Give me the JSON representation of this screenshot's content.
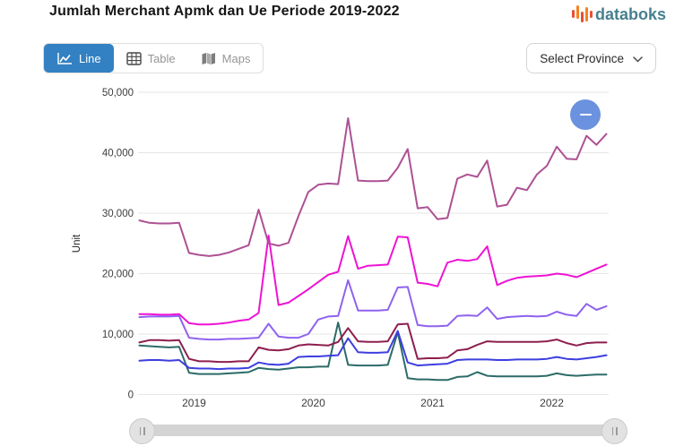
{
  "header": {
    "title": "Jumlah Merchant Apmk dan Ue Periode 2019-2022",
    "logo_text": "databoks"
  },
  "toolbar": {
    "tabs": [
      {
        "label": "Line",
        "active": true,
        "icon": "line-chart-icon"
      },
      {
        "label": "Table",
        "active": false,
        "icon": "table-icon"
      },
      {
        "label": "Maps",
        "active": false,
        "icon": "maps-icon"
      }
    ],
    "province_selector": {
      "label": "Select Province",
      "icon": "chevron-down-icon"
    }
  },
  "theme": {
    "accent_blue": "#3381c2",
    "fab_blue": "#6b92de",
    "logo_text_color": "#47808f",
    "logo_bar_colors": [
      "#e94f35",
      "#f58220",
      "#e94f35",
      "#f58220",
      "#e94f35"
    ],
    "gridline_color": "#e6e6e6",
    "axis_text_color": "#3c3c3c"
  },
  "fab_button": {
    "icon": "minus-icon"
  },
  "navigator": {
    "left_handle_icon": "drag-handle-icon",
    "right_handle_icon": "drag-handle-icon"
  },
  "chart_data": {
    "type": "line",
    "title": "Jumlah Merchant Apmk dan Ue Periode 2019-2022",
    "xlabel": "",
    "ylabel": "Unit",
    "ylim": [
      0,
      50000
    ],
    "grid": true,
    "legend": false,
    "y_ticks": [
      0,
      10000,
      20000,
      30000,
      40000,
      50000
    ],
    "y_tick_labels": [
      "0",
      "10,000",
      "20,000",
      "30,000",
      "40,000",
      "50,000"
    ],
    "x_labels": [
      "2019",
      "2020",
      "2021",
      "2022"
    ],
    "x_range": {
      "start": "Jan 2019",
      "end": "Dec 2022",
      "interval": "monthly",
      "points_per_series": 48
    },
    "series": [
      {
        "name": "teal",
        "color": "#2c6b68",
        "values": [
          8100,
          8000,
          7900,
          7800,
          7900,
          3600,
          3400,
          3400,
          3400,
          3500,
          3600,
          3700,
          4400,
          4200,
          4100,
          4300,
          4500,
          4500,
          4600,
          4600,
          11900,
          4900,
          4800,
          4800,
          4800,
          4900,
          10300,
          2700,
          2500,
          2500,
          2400,
          2400,
          2900,
          3000,
          3700,
          3100,
          3000,
          3000,
          3000,
          3000,
          3000,
          3100,
          3500,
          3200,
          3100,
          3200,
          3300,
          3300
        ]
      },
      {
        "name": "blue",
        "color": "#3d3ee0",
        "values": [
          5600,
          5700,
          5700,
          5600,
          5700,
          4400,
          4300,
          4300,
          4200,
          4300,
          4300,
          4400,
          5300,
          5000,
          4900,
          5100,
          6200,
          6300,
          6300,
          6400,
          6500,
          9300,
          7000,
          6900,
          6900,
          7000,
          10500,
          5300,
          4800,
          4900,
          5000,
          5100,
          5700,
          5800,
          5800,
          5800,
          5700,
          5700,
          5800,
          5800,
          5800,
          5900,
          6200,
          5900,
          5800,
          6000,
          6200,
          6500
        ]
      },
      {
        "name": "maroon",
        "color": "#8e1e4e",
        "values": [
          8600,
          9000,
          9000,
          8900,
          9000,
          5900,
          5500,
          5500,
          5400,
          5400,
          5500,
          5500,
          7800,
          7400,
          7300,
          7500,
          8100,
          8300,
          8200,
          8100,
          8700,
          11000,
          8800,
          8700,
          8700,
          8800,
          11600,
          11700,
          5900,
          6000,
          6000,
          6100,
          7300,
          7500,
          8200,
          8800,
          8700,
          8700,
          8700,
          8700,
          8700,
          8800,
          9100,
          8500,
          8100,
          8500,
          8600,
          8600
        ]
      },
      {
        "name": "purple",
        "color": "#8f62ef",
        "values": [
          12800,
          12900,
          12900,
          12900,
          13000,
          9400,
          9200,
          9100,
          9100,
          9200,
          9200,
          9300,
          9400,
          11700,
          9600,
          9400,
          9400,
          10000,
          12400,
          12900,
          13000,
          18900,
          13900,
          13900,
          13900,
          14000,
          17700,
          17800,
          11500,
          11300,
          11300,
          11400,
          13000,
          13100,
          13000,
          14400,
          12500,
          12800,
          12900,
          13000,
          12900,
          13000,
          13700,
          13200,
          13000,
          15000,
          14000,
          14600
        ]
      },
      {
        "name": "magenta",
        "color": "#ee13d4",
        "values": [
          13300,
          13300,
          13200,
          13200,
          13300,
          11800,
          11600,
          11600,
          11700,
          11900,
          12200,
          12400,
          13500,
          26300,
          14800,
          15200,
          16300,
          17400,
          18600,
          19800,
          20300,
          26200,
          20800,
          21300,
          21400,
          21500,
          26100,
          26000,
          18500,
          18300,
          17900,
          21800,
          22300,
          22100,
          22400,
          24500,
          18100,
          18800,
          19300,
          19500,
          19600,
          19700,
          20000,
          19800,
          19400,
          20100,
          20800,
          21500
        ]
      },
      {
        "name": "mauve",
        "color": "#ad5193",
        "values": [
          28800,
          28400,
          28300,
          28300,
          28400,
          23400,
          23100,
          22900,
          23100,
          23500,
          24100,
          24700,
          30600,
          25000,
          24600,
          25100,
          29500,
          33500,
          34700,
          34900,
          34800,
          45700,
          35400,
          35300,
          35300,
          35400,
          37500,
          40600,
          30800,
          31000,
          29000,
          29200,
          35700,
          36400,
          36000,
          38700,
          31100,
          31400,
          34200,
          33800,
          36400,
          37800,
          41000,
          39000,
          38900,
          42800,
          41300,
          43100
        ]
      }
    ]
  }
}
